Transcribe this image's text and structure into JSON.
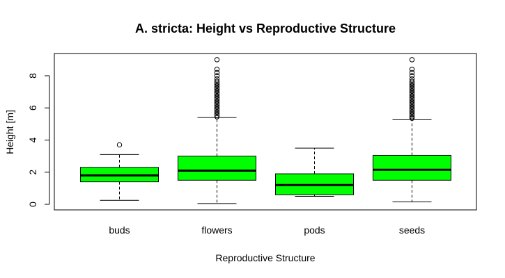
{
  "chart_data": {
    "type": "box",
    "title": "A. stricta: Height vs Reproductive Structure",
    "xlabel": "Reproductive Structure",
    "ylabel": "Height [m]",
    "ylim": [
      -0.4,
      9.3
    ],
    "yticks": [
      0,
      2,
      4,
      6,
      8
    ],
    "categories": [
      "buds",
      "flowers",
      "pods",
      "seeds"
    ],
    "box_color": "#00FF00",
    "grid": false,
    "series": [
      {
        "category": "buds",
        "whisker_low": 0.25,
        "q1": 1.4,
        "median": 1.8,
        "q3": 2.3,
        "whisker_high": 3.1,
        "outliers": [
          3.7
        ]
      },
      {
        "category": "flowers",
        "whisker_low": 0.05,
        "q1": 1.5,
        "median": 2.1,
        "q3": 3.0,
        "whisker_high": 5.4,
        "outliers": [
          5.45,
          5.55,
          5.65,
          5.75,
          5.85,
          5.95,
          6.05,
          6.15,
          6.25,
          6.35,
          6.45,
          6.55,
          6.65,
          6.75,
          6.85,
          6.95,
          7.05,
          7.15,
          7.25,
          7.35,
          7.45,
          7.55,
          7.65,
          7.8,
          8.0,
          8.2,
          8.4,
          9.0
        ]
      },
      {
        "category": "pods",
        "whisker_low": 0.5,
        "q1": 0.6,
        "median": 1.2,
        "q3": 1.9,
        "whisker_high": 3.5,
        "outliers": []
      },
      {
        "category": "seeds",
        "whisker_low": 0.15,
        "q1": 1.5,
        "median": 2.15,
        "q3": 3.05,
        "whisker_high": 5.3,
        "outliers": [
          5.35,
          5.45,
          5.55,
          5.65,
          5.75,
          5.85,
          5.95,
          6.05,
          6.15,
          6.25,
          6.35,
          6.45,
          6.55,
          6.65,
          6.75,
          6.85,
          6.95,
          7.05,
          7.15,
          7.25,
          7.35,
          7.45,
          7.55,
          7.65,
          7.8,
          8.0,
          8.2,
          8.4,
          9.0
        ]
      }
    ]
  }
}
